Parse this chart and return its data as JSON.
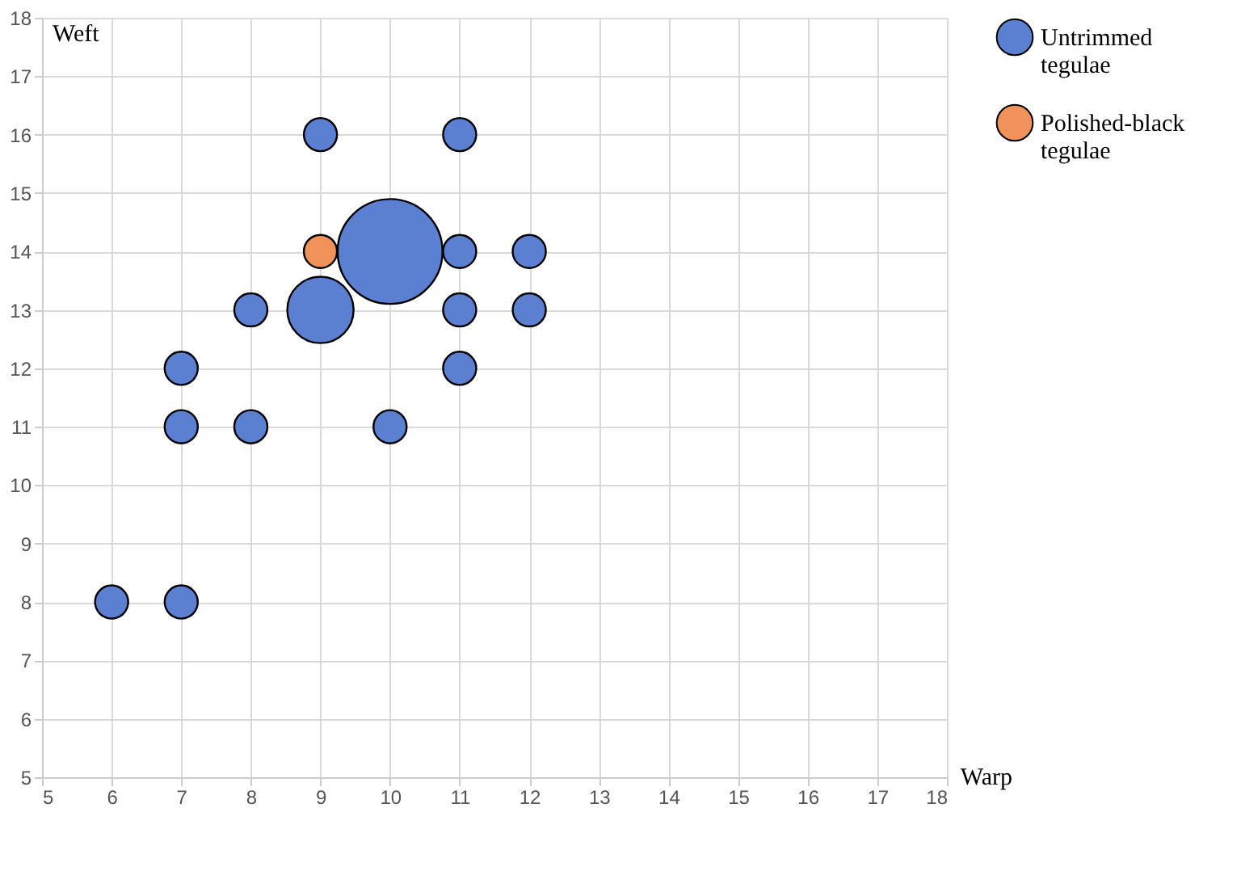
{
  "chart_data": {
    "type": "bubble",
    "xlabel": "Warp",
    "ylabel": "Weft",
    "xlim": [
      5,
      18
    ],
    "xticks": [
      5,
      6,
      7,
      8,
      9,
      10,
      11,
      12,
      13,
      14,
      15,
      16,
      17,
      18
    ],
    "ylim": [
      5,
      18
    ],
    "yticks": [
      5,
      6,
      7,
      8,
      9,
      10,
      11,
      12,
      13,
      14,
      15,
      16,
      17,
      18
    ],
    "grid": true,
    "legend": "right",
    "series": [
      {
        "name": "Untrimmed tegulae",
        "color": "#5b7fd1",
        "x": [
          10,
          9,
          9,
          11,
          11,
          12,
          8,
          11,
          12,
          7,
          11,
          7,
          8,
          10,
          6,
          7
        ],
        "values": [
          14,
          13,
          16,
          16,
          14,
          14,
          13,
          13,
          13,
          12,
          12,
          11,
          11,
          11,
          8,
          8
        ],
        "sizes": [
          1,
          0.4,
          0.1,
          0.1,
          0.1,
          0.1,
          0.1,
          0.1,
          0.1,
          0.1,
          0.1,
          0.1,
          0.1,
          0.1,
          0.1,
          0.1
        ]
      },
      {
        "name": "Polished-black tegulae",
        "color": "#f0925a",
        "x": [
          9
        ],
        "values": [
          14
        ],
        "sizes": [
          0.1
        ]
      }
    ]
  }
}
